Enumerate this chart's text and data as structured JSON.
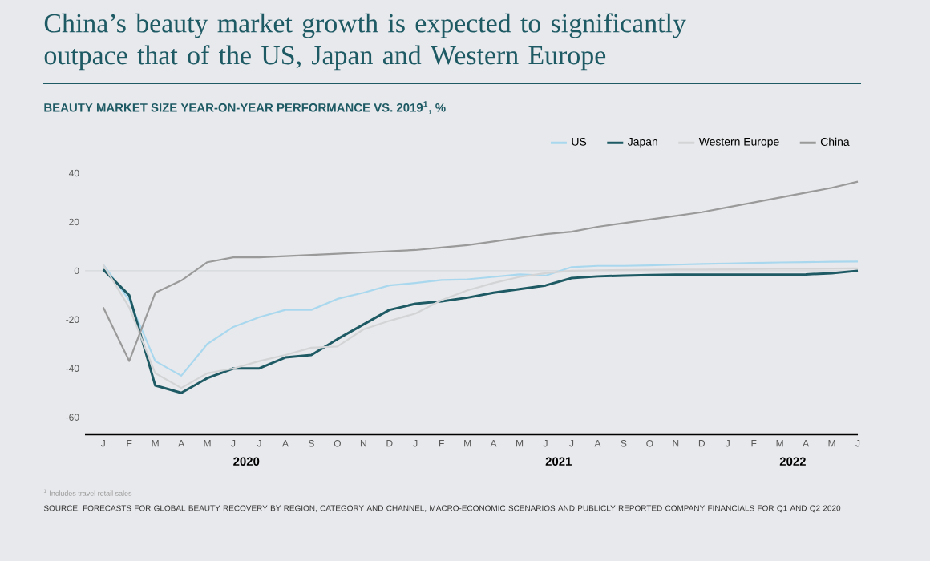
{
  "chart_data": {
    "type": "line",
    "title": "China’s beauty market growth is expected to significantly outpace that of the US, Japan and Western Europe",
    "subtitle": "BEAUTY MARKET SIZE YEAR-ON-YEAR PERFORMANCE VS. 2019$^{1}$, %",
    "annotations": [
      "2020",
      "2021",
      "2022",
      "$^{1}$ Includes travel retail sales",
      "SOURCE: FORECASTS FOR GLOBAL BEAUTY RECOVERY BY REGION, CATEGORY AND CHANNEL, MACRO-ECONOMIC SCENARIOS AND PUBLICLY REPORTED COMPANY FINANCIALS FOR Q1 AND Q2 2020"
    ],
    "categories": [
      "J",
      "F",
      "M",
      "A",
      "M",
      "J",
      "J",
      "A",
      "S",
      "O",
      "N",
      "D",
      "J",
      "F",
      "M",
      "A",
      "M",
      "J",
      "J",
      "A",
      "S",
      "O",
      "N",
      "D",
      "J",
      "F",
      "M",
      "A",
      "M",
      "J"
    ],
    "series": [
      {
        "name": "US",
        "color": "#a9d8ee",
        "values": [
          2.5,
          -12,
          -37,
          -43,
          -30,
          -23,
          -19,
          -16,
          -16,
          -11.5,
          -9,
          -6,
          -5,
          -3.8,
          -3.5,
          -2.5,
          -1.5,
          -2,
          1.5,
          2,
          2,
          2.2,
          2.5,
          2.8,
          3,
          3.2,
          3.4,
          3.5,
          3.7,
          3.8
        ]
      },
      {
        "name": "Japan",
        "color": "#1e5a64",
        "values": [
          0.5,
          -10,
          -47,
          -50,
          -44,
          -40,
          -40,
          -35.5,
          -34.5,
          -28,
          -22,
          -16,
          -13.5,
          -12.5,
          -11,
          -9,
          -7.5,
          -6,
          -3,
          -2.3,
          -2,
          -1.8,
          -1.6,
          -1.6,
          -1.6,
          -1.6,
          -1.6,
          -1.5,
          -1,
          0
        ]
      },
      {
        "name": "Western Europe",
        "color": "#d3d4d6",
        "values": [
          2.5,
          -15,
          -42,
          -48,
          -42,
          -40,
          -37,
          -34.5,
          -31.5,
          -31,
          -24,
          -20.5,
          -17.5,
          -12,
          -8,
          -5,
          -2.5,
          -1,
          0,
          0.2,
          0.3,
          0.4,
          0.5,
          0.5,
          0.6,
          0.7,
          0.8,
          0.8,
          0.9,
          1
        ]
      },
      {
        "name": "China",
        "color": "#9a9a9a",
        "values": [
          -15,
          -37,
          -9,
          -4,
          3.5,
          5.5,
          5.5,
          6,
          6.5,
          7,
          7.5,
          8,
          8.5,
          9.5,
          10.5,
          12,
          13.5,
          15,
          16,
          18,
          19.5,
          21,
          22.5,
          24,
          26,
          28,
          30,
          32,
          34,
          36.5
        ]
      }
    ],
    "ref_lines": [
      {
        "axis": "y",
        "value": 0,
        "color": "#d6d8dc"
      }
    ],
    "ylim": [
      -67,
      40
    ],
    "yticks": [
      -60,
      -40,
      -20,
      0,
      20,
      40
    ],
    "legend": "top right"
  }
}
